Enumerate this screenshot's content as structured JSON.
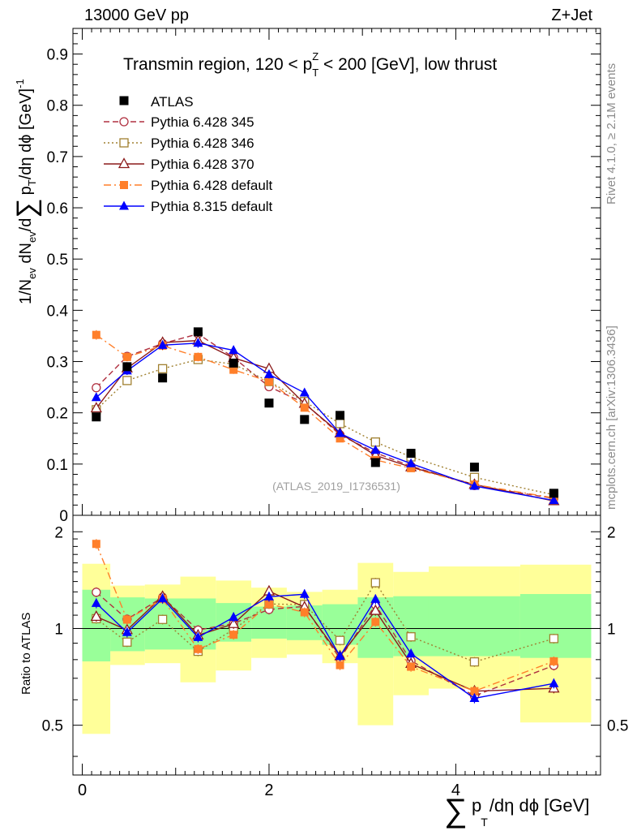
{
  "header": {
    "left": "13000 GeV pp",
    "right": "Z+Jet"
  },
  "side_labels": {
    "rivet": "Rivet 4.1.0, ≥ 2.1M events",
    "mcplots": "mcplots.cern.ch [arXiv:1306.3436]"
  },
  "watermark": "(ATLAS_2019_I1736531)",
  "colors": {
    "atlas": "#000000",
    "p345": "#b03040",
    "p346": "#a08030",
    "p370": "#8b1a1a",
    "p6def": "#ff7f2a",
    "p8def": "#0000ff",
    "band_inner": "#99ff99",
    "band_outer": "#ffff99"
  },
  "chart_data": {
    "type": "scatter",
    "title": "Transmin region, 120 < p_T^Z < 200 [GeV], low thrust",
    "title_parts": {
      "a": "Transmin region, 120 < p",
      "sub": "T",
      "sup": "Z",
      "b": " < 200 [GeV], low thrust"
    },
    "xlabel": "∑ p_T/dη dϕ [GeV]",
    "xlabel_parts": {
      "sum": "∑",
      "p": "p",
      "sub": "T",
      "rest": "/dη dϕ [GeV]"
    },
    "ylabel": "1/N_ev dN_ev/d∑ p_T/dη dϕ [GeV]^-1",
    "ylabel_parts": {
      "a": "1/N",
      "ev1": "ev",
      "b": " dN",
      "ev2": "ev",
      "c": "/d",
      "sum": "∑",
      "p": "p",
      "sub": "T",
      "d": "/dη dϕ  [GeV]",
      "sup": "-1"
    },
    "ratio_ylabel": "Ratio to ATLAS",
    "xlim": [
      -0.1,
      5.55
    ],
    "ylim": [
      0,
      0.95
    ],
    "ratio_ylim": [
      0.35,
      2.25
    ],
    "x_ticks": [
      "0",
      "2",
      "4"
    ],
    "y_ticks": [
      "0",
      "0.1",
      "0.2",
      "0.3",
      "0.4",
      "0.5",
      "0.6",
      "0.7",
      "0.8",
      "0.9"
    ],
    "ratio_ticks": [
      "0.5",
      "1",
      "2"
    ],
    "x": [
      0.15,
      0.48,
      0.86,
      1.24,
      1.62,
      2.0,
      2.38,
      2.76,
      3.14,
      3.52,
      4.2,
      5.05
    ],
    "bin_edges": [
      0.0,
      0.3,
      0.67,
      1.05,
      1.43,
      1.81,
      2.19,
      2.57,
      2.95,
      3.33,
      3.71,
      4.69,
      5.45
    ],
    "atlas": [
      0.192,
      0.29,
      0.268,
      0.358,
      0.297,
      0.219,
      0.187,
      0.195,
      0.103,
      0.121,
      0.094,
      0.043
    ],
    "band_inner": [
      [
        0.79,
        1.32
      ],
      [
        0.85,
        1.25
      ],
      [
        0.86,
        1.24
      ],
      [
        0.86,
        1.24
      ],
      [
        0.91,
        1.2
      ],
      [
        0.93,
        1.17
      ],
      [
        0.92,
        1.18
      ],
      [
        0.89,
        1.19
      ],
      [
        0.81,
        1.25
      ],
      [
        0.82,
        1.26
      ],
      [
        0.82,
        1.26
      ],
      [
        0.81,
        1.28
      ]
    ],
    "band_outer": [
      [
        0.47,
        1.59
      ],
      [
        0.77,
        1.36
      ],
      [
        0.78,
        1.37
      ],
      [
        0.68,
        1.45
      ],
      [
        0.74,
        1.41
      ],
      [
        0.81,
        1.34
      ],
      [
        0.83,
        1.3
      ],
      [
        0.78,
        1.32
      ],
      [
        0.5,
        1.6
      ],
      [
        0.62,
        1.5
      ],
      [
        0.65,
        1.56
      ],
      [
        0.51,
        1.58
      ]
    ],
    "series": [
      {
        "name": "Pythia 6.428 345",
        "key": "p345",
        "marker": "circle-open",
        "dash": "7,4",
        "values": [
          0.249,
          0.31,
          0.335,
          0.354,
          0.308,
          0.251,
          0.219,
          0.157,
          0.122,
          0.096,
          0.058,
          0.033
        ]
      },
      {
        "name": "Pythia 6.428 346",
        "key": "p346",
        "marker": "square-open",
        "dash": "2,3",
        "values": [
          0.206,
          0.263,
          0.286,
          0.304,
          0.295,
          0.261,
          0.222,
          0.179,
          0.143,
          0.114,
          0.074,
          0.04
        ]
      },
      {
        "name": "Pythia 6.428 370",
        "key": "p370",
        "marker": "triangle-open",
        "dash": "",
        "values": [
          0.209,
          0.287,
          0.337,
          0.341,
          0.307,
          0.286,
          0.218,
          0.16,
          0.117,
          0.094,
          0.06,
          0.028
        ]
      },
      {
        "name": "Pythia 6.428 default",
        "key": "p6def",
        "marker": "square-filled",
        "dash": "9,4,2,4",
        "values": [
          0.352,
          0.309,
          0.331,
          0.309,
          0.284,
          0.261,
          0.21,
          0.15,
          0.108,
          0.092,
          0.06,
          0.034
        ]
      },
      {
        "name": "Pythia 8.315 default",
        "key": "p8def",
        "marker": "triangle-filled",
        "dash": "",
        "values": [
          0.23,
          0.282,
          0.332,
          0.336,
          0.322,
          0.275,
          0.239,
          0.16,
          0.127,
          0.101,
          0.057,
          0.029
        ]
      }
    ],
    "legend": {
      "placement": "top-left",
      "data_label": "ATLAS"
    }
  }
}
